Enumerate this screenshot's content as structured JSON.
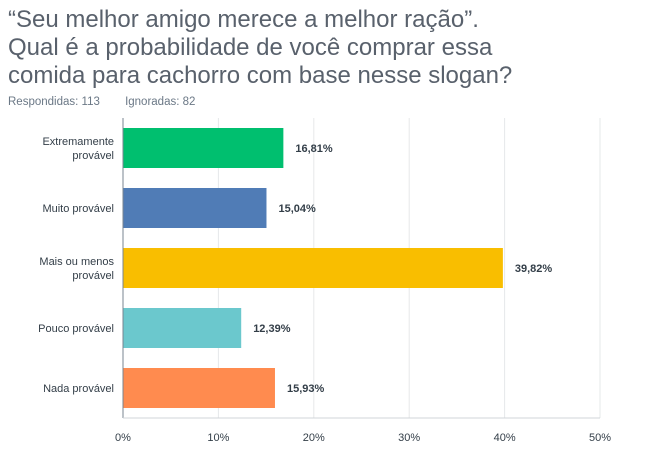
{
  "title_lines": [
    "“Seu melhor amigo merece a melhor ração”.",
    "Qual é a probabilidade de você comprar essa",
    "comida para cachorro com base nesse slogan?"
  ],
  "stats": {
    "answered": "Respondidas: 113",
    "skipped": "Ignoradas: 82"
  },
  "chart_data": {
    "type": "bar",
    "orientation": "horizontal",
    "categories": [
      [
        "Extremamente",
        "provável"
      ],
      [
        "Muito provável"
      ],
      [
        "Mais ou menos",
        "provável"
      ],
      [
        "Pouco provável"
      ],
      [
        "Nada provável"
      ]
    ],
    "values": [
      16.81,
      15.04,
      39.82,
      12.39,
      15.93
    ],
    "value_labels": [
      "16,81%",
      "15,04%",
      "39,82%",
      "12,39%",
      "15,93%"
    ],
    "colors": [
      "#00bf6f",
      "#507cb6",
      "#f9be00",
      "#6bc8cd",
      "#ff8b4f"
    ],
    "xlim": [
      0,
      50
    ],
    "xticks": [
      0,
      10,
      20,
      30,
      40,
      50
    ],
    "xtick_labels": [
      "0%",
      "10%",
      "20%",
      "30%",
      "40%",
      "50%"
    ],
    "grid": true
  }
}
